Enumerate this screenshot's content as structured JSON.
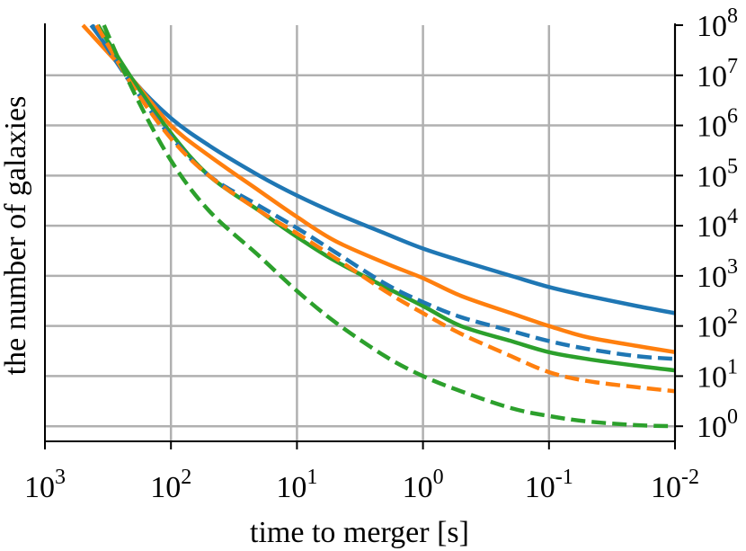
{
  "chart_data": {
    "type": "line",
    "title": "",
    "xlabel": "time to merger [s]",
    "ylabel": "the number of galaxies",
    "x_scale": "log",
    "x_reversed": true,
    "y_scale": "log",
    "y_axis_position": "right",
    "xlim": [
      1000,
      0.01
    ],
    "ylim": [
      0.5,
      100000000
    ],
    "grid": true,
    "x_ticks": [
      {
        "value": 1000,
        "base": "10",
        "exp": "3"
      },
      {
        "value": 100,
        "base": "10",
        "exp": "2"
      },
      {
        "value": 10,
        "base": "10",
        "exp": "1"
      },
      {
        "value": 1,
        "base": "10",
        "exp": "0"
      },
      {
        "value": 0.1,
        "base": "10",
        "exp": "-1"
      },
      {
        "value": 0.01,
        "base": "10",
        "exp": "-2"
      }
    ],
    "y_ticks": [
      {
        "value": 1,
        "base": "10",
        "exp": "0"
      },
      {
        "value": 10,
        "base": "10",
        "exp": "1"
      },
      {
        "value": 100,
        "base": "10",
        "exp": "2"
      },
      {
        "value": 1000,
        "base": "10",
        "exp": "3"
      },
      {
        "value": 10000,
        "base": "10",
        "exp": "4"
      },
      {
        "value": 100000,
        "base": "10",
        "exp": "5"
      },
      {
        "value": 1000000,
        "base": "10",
        "exp": "6"
      },
      {
        "value": 10000000,
        "base": "10",
        "exp": "7"
      },
      {
        "value": 100000000,
        "base": "10",
        "exp": "8"
      }
    ],
    "series": [
      {
        "color": "#1f77b4",
        "dash": "solid",
        "x": [
          430,
          200,
          100,
          50,
          20,
          10,
          5,
          2,
          1,
          0.5,
          0.2,
          0.1,
          0.05,
          0.02,
          0.01
        ],
        "y": [
          100000000,
          8000000,
          1400000,
          400000,
          100000,
          40000,
          18000,
          7000,
          3500,
          2000,
          1000,
          600,
          400,
          250,
          180
        ]
      },
      {
        "color": "#ff7f0e",
        "dash": "solid",
        "x": [
          500,
          200,
          100,
          50,
          20,
          10,
          5,
          2,
          1,
          0.5,
          0.2,
          0.1,
          0.05,
          0.02,
          0.01
        ],
        "y": [
          100000000,
          8000000,
          1000000,
          250000,
          50000,
          15000,
          5000,
          1800,
          900,
          400,
          180,
          100,
          60,
          40,
          30
        ]
      },
      {
        "color": "#2ca02c",
        "dash": "solid",
        "x": [
          380,
          200,
          100,
          50,
          20,
          10,
          5,
          2,
          1,
          0.5,
          0.2,
          0.1,
          0.05,
          0.02,
          0.01
        ],
        "y": [
          100000000,
          8000000,
          700000,
          100000,
          20000,
          6000,
          2000,
          600,
          250,
          100,
          50,
          30,
          22,
          16,
          13
        ]
      },
      {
        "color": "#1f77b4",
        "dash": "dashed",
        "x": [
          420,
          200,
          100,
          50,
          20,
          10,
          5,
          2,
          1,
          0.5,
          0.2,
          0.1,
          0.05,
          0.02,
          0.01
        ],
        "y": [
          100000000,
          6000000,
          600000,
          100000,
          25000,
          9000,
          3000,
          700,
          300,
          150,
          80,
          50,
          35,
          25,
          22
        ]
      },
      {
        "color": "#ff7f0e",
        "dash": "dashed",
        "x": [
          390,
          200,
          100,
          50,
          20,
          10,
          5,
          2,
          1,
          0.5,
          0.2,
          0.1,
          0.05,
          0.02,
          0.01
        ],
        "y": [
          100000000,
          6000000,
          550000,
          100000,
          20000,
          7000,
          2300,
          500,
          180,
          70,
          25,
          12,
          8,
          6,
          5
        ]
      },
      {
        "color": "#2ca02c",
        "dash": "dashed",
        "x": [
          340,
          200,
          100,
          50,
          20,
          10,
          5,
          2,
          1,
          0.5,
          0.2,
          0.1,
          0.05,
          0.02,
          0.01
        ],
        "y": [
          100000000,
          5000000,
          200000,
          20000,
          2500,
          500,
          120,
          25,
          10,
          5,
          2.3,
          1.6,
          1.25,
          1.05,
          1.0
        ]
      }
    ]
  }
}
